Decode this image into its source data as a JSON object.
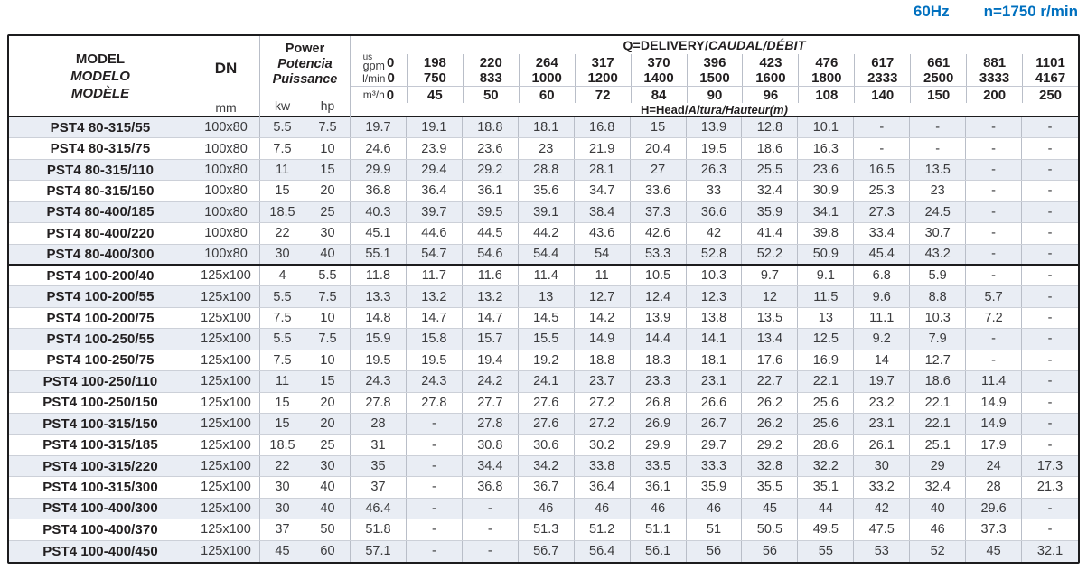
{
  "meta": {
    "frequency": "60Hz",
    "speed": "n=1750 r/min"
  },
  "colors": {
    "accent_blue": "#0070bf",
    "row_alt": "#e9edf4",
    "border": "#1c1c1e",
    "grid_line": "#b9bec8"
  },
  "table": {
    "model_header": {
      "line1": "MODEL",
      "line2": "MODELO",
      "line3": "MODÈLE"
    },
    "dn_header": {
      "label": "DN",
      "unit": "mm"
    },
    "power_header": {
      "line1": "Power",
      "line2": "Potencia",
      "line3": "Puissance",
      "unit_kw": "kw",
      "unit_hp": "hp"
    },
    "q_header": {
      "title_plain": "Q=DELIVERY/",
      "title_italic": "CAUDAL/DÉBIT"
    },
    "h_header": {
      "title_plain": "H=Head/",
      "title_italic": "Altura/Hauteur(m)"
    },
    "flow_rows": [
      {
        "key": "us-gpm",
        "unit_top": "us",
        "unit_bottom": "gpm",
        "values": [
          "0",
          "198",
          "220",
          "264",
          "317",
          "370",
          "396",
          "423",
          "476",
          "617",
          "661",
          "881",
          "1101"
        ]
      },
      {
        "key": "l-min",
        "unit": "l/min",
        "values": [
          "0",
          "750",
          "833",
          "1000",
          "1200",
          "1400",
          "1500",
          "1600",
          "1800",
          "2333",
          "2500",
          "3333",
          "4167"
        ]
      },
      {
        "key": "m3-h",
        "unit": "m³/h",
        "values": [
          "0",
          "45",
          "50",
          "60",
          "72",
          "84",
          "90",
          "96",
          "108",
          "140",
          "150",
          "200",
          "250"
        ]
      }
    ],
    "rows": [
      {
        "model": "PST4 80-315/55",
        "dn": "100x80",
        "kw": "5.5",
        "hp": "7.5",
        "group_end": false,
        "head": [
          "19.7",
          "19.1",
          "18.8",
          "18.1",
          "16.8",
          "15",
          "13.9",
          "12.8",
          "10.1",
          "-",
          "-",
          "-",
          "-"
        ]
      },
      {
        "model": "PST4 80-315/75",
        "dn": "100x80",
        "kw": "7.5",
        "hp": "10",
        "group_end": false,
        "head": [
          "24.6",
          "23.9",
          "23.6",
          "23",
          "21.9",
          "20.4",
          "19.5",
          "18.6",
          "16.3",
          "-",
          "-",
          "-",
          "-"
        ]
      },
      {
        "model": "PST4 80-315/110",
        "dn": "100x80",
        "kw": "11",
        "hp": "15",
        "group_end": false,
        "head": [
          "29.9",
          "29.4",
          "29.2",
          "28.8",
          "28.1",
          "27",
          "26.3",
          "25.5",
          "23.6",
          "16.5",
          "13.5",
          "-",
          "-"
        ]
      },
      {
        "model": "PST4 80-315/150",
        "dn": "100x80",
        "kw": "15",
        "hp": "20",
        "group_end": false,
        "head": [
          "36.8",
          "36.4",
          "36.1",
          "35.6",
          "34.7",
          "33.6",
          "33",
          "32.4",
          "30.9",
          "25.3",
          "23",
          "-",
          "-"
        ]
      },
      {
        "model": "PST4 80-400/185",
        "dn": "100x80",
        "kw": "18.5",
        "hp": "25",
        "group_end": false,
        "head": [
          "40.3",
          "39.7",
          "39.5",
          "39.1",
          "38.4",
          "37.3",
          "36.6",
          "35.9",
          "34.1",
          "27.3",
          "24.5",
          "-",
          "-"
        ]
      },
      {
        "model": "PST4 80-400/220",
        "dn": "100x80",
        "kw": "22",
        "hp": "30",
        "group_end": false,
        "head": [
          "45.1",
          "44.6",
          "44.5",
          "44.2",
          "43.6",
          "42.6",
          "42",
          "41.4",
          "39.8",
          "33.4",
          "30.7",
          "-",
          "-"
        ]
      },
      {
        "model": "PST4 80-400/300",
        "dn": "100x80",
        "kw": "30",
        "hp": "40",
        "group_end": true,
        "head": [
          "55.1",
          "54.7",
          "54.6",
          "54.4",
          "54",
          "53.3",
          "52.8",
          "52.2",
          "50.9",
          "45.4",
          "43.2",
          "-",
          "-"
        ]
      },
      {
        "model": "PST4 100-200/40",
        "dn": "125x100",
        "kw": "4",
        "hp": "5.5",
        "group_end": false,
        "head": [
          "11.8",
          "11.7",
          "11.6",
          "11.4",
          "11",
          "10.5",
          "10.3",
          "9.7",
          "9.1",
          "6.8",
          "5.9",
          "-",
          "-"
        ]
      },
      {
        "model": "PST4 100-200/55",
        "dn": "125x100",
        "kw": "5.5",
        "hp": "7.5",
        "group_end": false,
        "head": [
          "13.3",
          "13.2",
          "13.2",
          "13",
          "12.7",
          "12.4",
          "12.3",
          "12",
          "11.5",
          "9.6",
          "8.8",
          "5.7",
          "-"
        ]
      },
      {
        "model": "PST4 100-200/75",
        "dn": "125x100",
        "kw": "7.5",
        "hp": "10",
        "group_end": false,
        "head": [
          "14.8",
          "14.7",
          "14.7",
          "14.5",
          "14.2",
          "13.9",
          "13.8",
          "13.5",
          "13",
          "11.1",
          "10.3",
          "7.2",
          "-"
        ]
      },
      {
        "model": "PST4 100-250/55",
        "dn": "125x100",
        "kw": "5.5",
        "hp": "7.5",
        "group_end": false,
        "head": [
          "15.9",
          "15.8",
          "15.7",
          "15.5",
          "14.9",
          "14.4",
          "14.1",
          "13.4",
          "12.5",
          "9.2",
          "7.9",
          "-",
          "-"
        ]
      },
      {
        "model": "PST4 100-250/75",
        "dn": "125x100",
        "kw": "7.5",
        "hp": "10",
        "group_end": false,
        "head": [
          "19.5",
          "19.5",
          "19.4",
          "19.2",
          "18.8",
          "18.3",
          "18.1",
          "17.6",
          "16.9",
          "14",
          "12.7",
          "-",
          "-"
        ]
      },
      {
        "model": "PST4 100-250/110",
        "dn": "125x100",
        "kw": "11",
        "hp": "15",
        "group_end": false,
        "head": [
          "24.3",
          "24.3",
          "24.2",
          "24.1",
          "23.7",
          "23.3",
          "23.1",
          "22.7",
          "22.1",
          "19.7",
          "18.6",
          "11.4",
          "-"
        ]
      },
      {
        "model": "PST4 100-250/150",
        "dn": "125x100",
        "kw": "15",
        "hp": "20",
        "group_end": false,
        "head": [
          "27.8",
          "27.8",
          "27.7",
          "27.6",
          "27.2",
          "26.8",
          "26.6",
          "26.2",
          "25.6",
          "23.2",
          "22.1",
          "14.9",
          "-"
        ]
      },
      {
        "model": "PST4 100-315/150",
        "dn": "125x100",
        "kw": "15",
        "hp": "20",
        "group_end": false,
        "head": [
          "28",
          "-",
          "27.8",
          "27.6",
          "27.2",
          "26.9",
          "26.7",
          "26.2",
          "25.6",
          "23.1",
          "22.1",
          "14.9",
          "-"
        ]
      },
      {
        "model": "PST4 100-315/185",
        "dn": "125x100",
        "kw": "18.5",
        "hp": "25",
        "group_end": false,
        "head": [
          "31",
          "-",
          "30.8",
          "30.6",
          "30.2",
          "29.9",
          "29.7",
          "29.2",
          "28.6",
          "26.1",
          "25.1",
          "17.9",
          "-"
        ]
      },
      {
        "model": "PST4 100-315/220",
        "dn": "125x100",
        "kw": "22",
        "hp": "30",
        "group_end": false,
        "head": [
          "35",
          "-",
          "34.4",
          "34.2",
          "33.8",
          "33.5",
          "33.3",
          "32.8",
          "32.2",
          "30",
          "29",
          "24",
          "17.3"
        ]
      },
      {
        "model": "PST4 100-315/300",
        "dn": "125x100",
        "kw": "30",
        "hp": "40",
        "group_end": false,
        "head": [
          "37",
          "-",
          "36.8",
          "36.7",
          "36.4",
          "36.1",
          "35.9",
          "35.5",
          "35.1",
          "33.2",
          "32.4",
          "28",
          "21.3"
        ]
      },
      {
        "model": "PST4 100-400/300",
        "dn": "125x100",
        "kw": "30",
        "hp": "40",
        "group_end": false,
        "head": [
          "46.4",
          "-",
          "-",
          "46",
          "46",
          "46",
          "46",
          "45",
          "44",
          "42",
          "40",
          "29.6",
          "-"
        ]
      },
      {
        "model": "PST4 100-400/370",
        "dn": "125x100",
        "kw": "37",
        "hp": "50",
        "group_end": false,
        "head": [
          "51.8",
          "-",
          "-",
          "51.3",
          "51.2",
          "51.1",
          "51",
          "50.5",
          "49.5",
          "47.5",
          "46",
          "37.3",
          "-"
        ]
      },
      {
        "model": "PST4 100-400/450",
        "dn": "125x100",
        "kw": "45",
        "hp": "60",
        "group_end": false,
        "head": [
          "57.1",
          "-",
          "-",
          "56.7",
          "56.4",
          "56.1",
          "56",
          "56",
          "55",
          "53",
          "52",
          "45",
          "32.1"
        ]
      }
    ]
  }
}
